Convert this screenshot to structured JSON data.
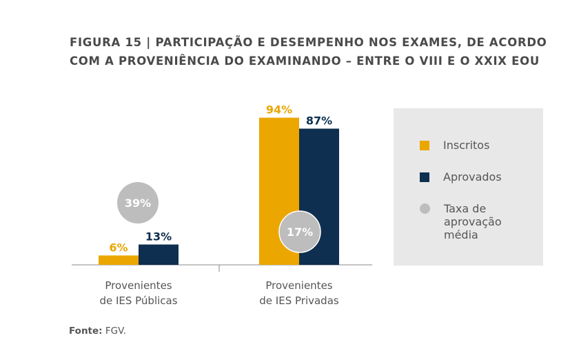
{
  "title": {
    "line1": "FIGURA 15 | PARTICIPAÇÃO E DESEMPENHO NOS EXAMES, DE ACORDO",
    "line2": "COM A PROVENIÊNCIA DO EXAMINANDO – ENTRE O VIII E O XXIX EOU"
  },
  "source": {
    "label": "Fonte:",
    "text": "FGV."
  },
  "colors": {
    "inscritos": "#EBA600",
    "aprovados": "#0E2F4F",
    "taxa": "#BDBDBD",
    "legend_bg": "#E8E8E8",
    "text": "#555555"
  },
  "legend": {
    "items": [
      {
        "label": "Inscritos",
        "marker": "square",
        "color": "#EBA600"
      },
      {
        "label": "Aprovados",
        "marker": "square",
        "color": "#0E2F4F"
      },
      {
        "label": "Taxa de aprovação média",
        "marker": "circle",
        "color": "#BDBDBD"
      }
    ]
  },
  "chart_data": {
    "type": "bar",
    "title": "FIGURA 15 | PARTICIPAÇÃO E DESEMPENHO NOS EXAMES, DE ACORDO COM A PROVENIÊNCIA DO EXAMINANDO – ENTRE O VIII E O XXIX EOU",
    "categories": [
      "Provenientes de IES Públicas",
      "Provenientes de IES Privadas"
    ],
    "category_lines": [
      [
        "Provenientes",
        "de IES Públicas"
      ],
      [
        "Provenientes",
        "de IES Privadas"
      ]
    ],
    "series": [
      {
        "name": "Inscritos",
        "values": [
          6,
          94
        ],
        "labels": [
          "6%",
          "94%"
        ],
        "color": "#EBA600"
      },
      {
        "name": "Aprovados",
        "values": [
          13,
          87
        ],
        "labels": [
          "13%",
          "87%"
        ],
        "color": "#0E2F4F"
      }
    ],
    "approval_rate": {
      "name": "Taxa de aprovação média",
      "values": [
        39,
        17
      ],
      "labels": [
        "39%",
        "17%"
      ],
      "color": "#BDBDBD"
    },
    "ylim": [
      0,
      100
    ],
    "grid": false,
    "legend_position": "right"
  }
}
